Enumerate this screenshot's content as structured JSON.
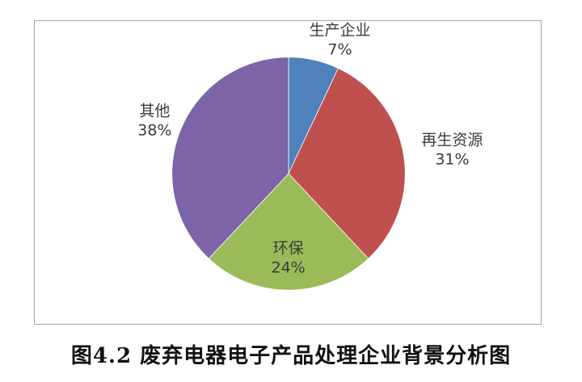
{
  "page": {
    "background": "#ffffff"
  },
  "figure": {
    "frame_border_color": "#a6a6a6",
    "label_text_color": "#3b3b3b"
  },
  "caption": {
    "text": "图4.2 废弃电器电子产品处理企业背景分析图"
  },
  "chart_data": {
    "type": "pie",
    "title": "图4.2 废弃电器电子产品处理企业背景分析图",
    "start_angle_deg": 0,
    "direction": "clockwise",
    "legend_position": "none",
    "label_format": "name_and_percent",
    "units": "%",
    "total": 100,
    "slices": [
      {
        "label": "生产企业",
        "percent": 7,
        "color": "#4F81BD",
        "label_placement": "outside-top",
        "label_pos": {
          "x_pct": 60.3,
          "y_pct": 6.5
        }
      },
      {
        "label": "再生资源",
        "percent": 31,
        "color": "#C0504D",
        "label_placement": "outside-right",
        "label_pos": {
          "x_pct": 82.5,
          "y_pct": 42.7
        }
      },
      {
        "label": "环保",
        "percent": 24,
        "color": "#9ABB58",
        "label_placement": "inside-bottom",
        "label_pos": {
          "x_pct": 50.1,
          "y_pct": 78.5
        }
      },
      {
        "label": "其他",
        "percent": 38,
        "color": "#7D63A7",
        "label_placement": "outside-left",
        "label_pos": {
          "x_pct": 23.7,
          "y_pct": 33.0
        }
      }
    ]
  }
}
